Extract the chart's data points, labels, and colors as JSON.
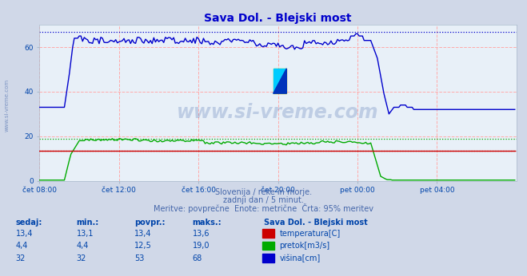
{
  "title": "Sava Dol. - Blejski most",
  "title_color": "#0000cc",
  "bg_color": "#d0d8e8",
  "plot_bg_color": "#e8f0f8",
  "grid_color_pink": "#ffaaaa",
  "xlabel_ticks": [
    "čet 08:00",
    "čet 12:00",
    "čet 16:00",
    "čet 20:00",
    "pet 00:00",
    "pet 04:00"
  ],
  "ylabel_ticks": [
    "0",
    "20",
    "40",
    "60"
  ],
  "ylim": [
    0,
    70
  ],
  "xlim": [
    0,
    288
  ],
  "subtitle1": "Slovenija / reke in morje.",
  "subtitle2": "zadnji dan / 5 minut.",
  "subtitle3": "Meritve: povprečne  Enote: metrične  Črta: 95% meritev",
  "subtitle_color": "#4466aa",
  "watermark_text": "www.si-vreme.com",
  "watermark_color": "#4466aa",
  "watermark_alpha": 0.25,
  "table_header": [
    "sedaj:",
    "min.:",
    "povpr.:",
    "maks.:"
  ],
  "table_station": "Sava Dol. - Blejski most",
  "table_rows": [
    {
      "values": [
        "13,4",
        "13,1",
        "13,4",
        "13,6"
      ],
      "label": "temperatura[C]",
      "color": "#cc0000"
    },
    {
      "values": [
        "4,4",
        "4,4",
        "12,5",
        "19,0"
      ],
      "label": "pretok[m3/s]",
      "color": "#00aa00"
    },
    {
      "values": [
        "32",
        "32",
        "53",
        "68"
      ],
      "label": "višina[cm]",
      "color": "#0000cc"
    }
  ],
  "text_color_table": "#0044aa",
  "dashed_line_blue_y": 67.0,
  "dashed_line_green_y": 19.0,
  "dashed_line_red_y": 13.4,
  "temp_line_color": "#cc0000",
  "flow_line_color": "#00aa00",
  "height_line_color": "#0000cc",
  "n_points": 288,
  "tick_positions": [
    0,
    48,
    96,
    144,
    192,
    240
  ],
  "logo_yellow": "#ffee00",
  "logo_cyan": "#00ccff",
  "logo_blue": "#0033bb",
  "left_text": "www.si-vreme.com",
  "left_text_color": "#4466aa"
}
